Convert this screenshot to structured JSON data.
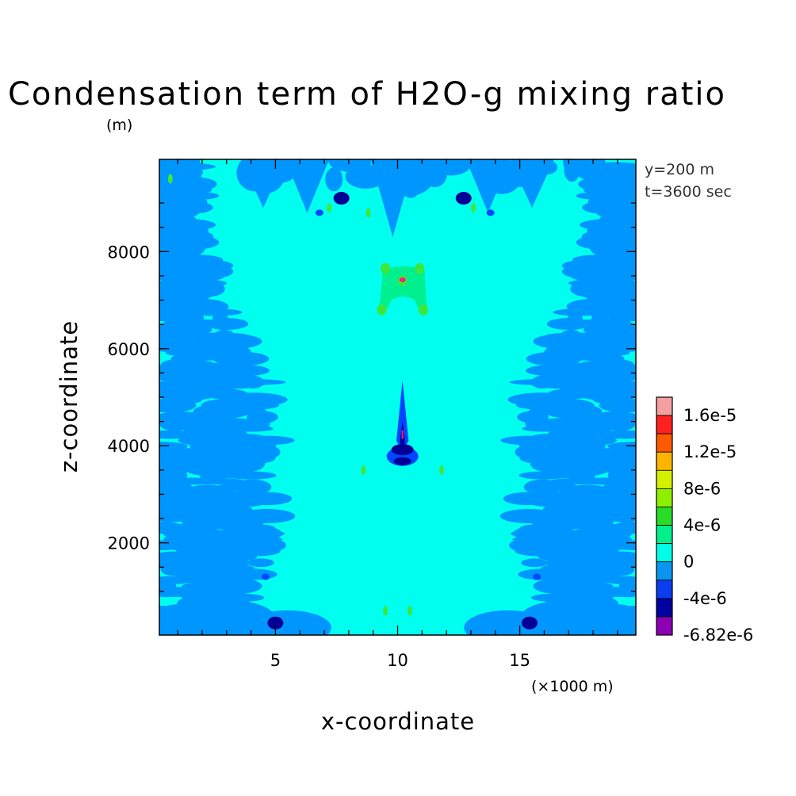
{
  "chart_data": {
    "type": "heatmap",
    "title": "Condensation term of H2O-g mixing ratio",
    "ylabel": "z-coordinate",
    "yunit": "(m)",
    "xlabel": "x-coordinate",
    "xunit": "(×1000 m)",
    "xlim": [
      0.25,
      19.75
    ],
    "ylim": [
      100,
      9900
    ],
    "xticks": [
      "5",
      "10",
      "15"
    ],
    "xtick_values": [
      5,
      10,
      15
    ],
    "yticks": [
      "2000",
      "4000",
      "6000",
      "8000"
    ],
    "ytick_values": [
      2000,
      4000,
      6000,
      8000
    ],
    "info": [
      "y=200 m",
      "t=3600 sec"
    ],
    "colorbar": {
      "labels": [
        "1.6e-5",
        "1.2e-5",
        "8e-6",
        "4e-6",
        "0",
        "-4e-6",
        "-6.82e-6"
      ],
      "colors_top_to_bottom": [
        "#f4a0a0",
        "#ff2020",
        "#ff5a00",
        "#ffb400",
        "#d2f000",
        "#8cf000",
        "#28dc28",
        "#00f08c",
        "#00ffe6",
        "#0a96f0",
        "#0a3cf0",
        "#0000a0",
        "#8c00b4"
      ]
    },
    "field_colors": {
      "background": "#00ffee",
      "negative_small": "#0096ff",
      "negative_medium": "#0046ff",
      "negative_large": "#000096",
      "positive_small": "#00f090",
      "positive_medium": "#3ce83c",
      "max_marker": "#ff2080"
    },
    "grid": false,
    "legend": "right"
  }
}
